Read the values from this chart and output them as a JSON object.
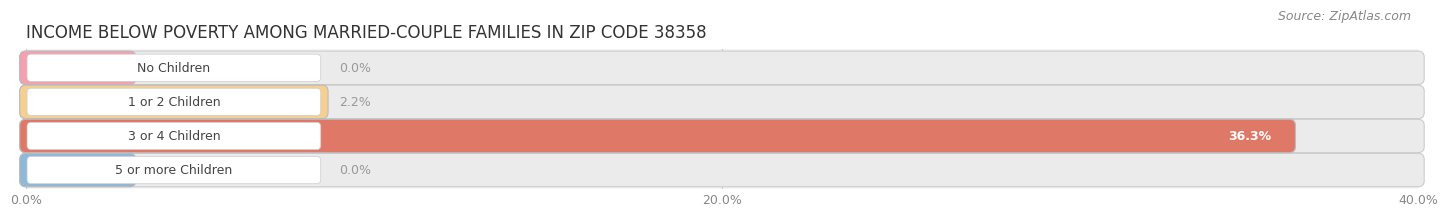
{
  "title": "INCOME BELOW POVERTY AMONG MARRIED-COUPLE FAMILIES IN ZIP CODE 38358",
  "source": "Source: ZipAtlas.com",
  "categories": [
    "No Children",
    "1 or 2 Children",
    "3 or 4 Children",
    "5 or more Children"
  ],
  "values": [
    0.0,
    2.2,
    36.3,
    0.0
  ],
  "bar_colors": [
    "#f5a0b0",
    "#f5d090",
    "#e07868",
    "#90b8d8"
  ],
  "bar_bg_colors": [
    "#f0f0f0",
    "#f0f0f0",
    "#f0f0f0",
    "#f0f0f0"
  ],
  "label_box_colors": [
    "#ffffff",
    "#ffffff",
    "#ffffff",
    "#ffffff"
  ],
  "value_colors": [
    "#999999",
    "#999999",
    "#ffffff",
    "#999999"
  ],
  "xlim": [
    0,
    40
  ],
  "xticks": [
    0.0,
    20.0,
    40.0
  ],
  "xtick_labels": [
    "0.0%",
    "20.0%",
    "40.0%"
  ],
  "background_color": "#ffffff",
  "plot_bg_color": "#f5f5f5",
  "title_fontsize": 12,
  "source_fontsize": 9,
  "label_fontsize": 9,
  "value_fontsize": 9,
  "tick_fontsize": 9,
  "bar_height": 0.62,
  "bar_gap": 1.0
}
